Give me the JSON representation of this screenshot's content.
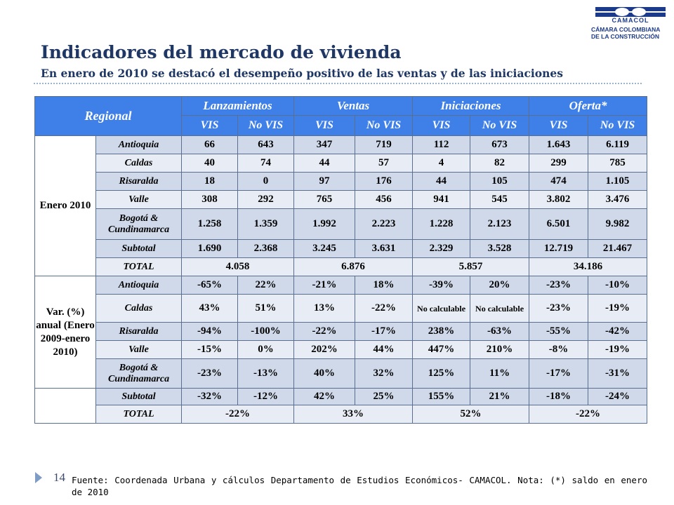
{
  "logo": {
    "word": "CAMACOL",
    "line1": "CÁMARA COLOMBIANA",
    "line2": "DE LA CONSTRUCCIÓN"
  },
  "title": "Indicadores del mercado de vivienda",
  "subtitle": "En enero de 2010 se destacó el desempeño positivo de las ventas y de las iniciaciones",
  "table": {
    "header": {
      "regional": "Regional",
      "groups": [
        "Lanzamientos",
        "Ventas",
        "Iniciaciones",
        "Oferta*"
      ],
      "subcols": [
        "VIS",
        "No VIS",
        "VIS",
        "No VIS",
        "VIS",
        "No VIS",
        "VIS",
        "No VIS"
      ]
    },
    "section1": {
      "label": "Enero 2010",
      "rows": [
        {
          "city": "Antioquia",
          "values": [
            "66",
            "643",
            "347",
            "719",
            "112",
            "673",
            "1.643",
            "6.119"
          ]
        },
        {
          "city": "Caldas",
          "values": [
            "40",
            "74",
            "44",
            "57",
            "4",
            "82",
            "299",
            "785"
          ]
        },
        {
          "city": "Risaralda",
          "values": [
            "18",
            "0",
            "97",
            "176",
            "44",
            "105",
            "474",
            "1.105"
          ]
        },
        {
          "city": "Valle",
          "values": [
            "308",
            "292",
            "765",
            "456",
            "941",
            "545",
            "3.802",
            "3.476"
          ]
        },
        {
          "city": "Bogotá & Cundinamarca",
          "values": [
            "1.258",
            "1.359",
            "1.992",
            "2.223",
            "1.228",
            "2.123",
            "6.501",
            "9.982"
          ]
        }
      ],
      "subtotal": {
        "label": "Subtotal",
        "values": [
          "1.690",
          "2.368",
          "3.245",
          "3.631",
          "2.329",
          "3.528",
          "12.719",
          "21.467"
        ]
      },
      "total": {
        "label": "TOTAL",
        "values": [
          "4.058",
          "6.876",
          "5.857",
          "34.186"
        ]
      }
    },
    "section2": {
      "label": "Var. (%) anual (Enero 2009-enero 2010)",
      "rows": [
        {
          "city": "Antioquia",
          "values": [
            "-65%",
            "22%",
            "-21%",
            "18%",
            "-39%",
            "20%",
            "-23%",
            "-10%"
          ]
        },
        {
          "city": "Caldas",
          "values": [
            "43%",
            "51%",
            "13%",
            "-22%",
            "No calculable",
            "No calculable",
            "-23%",
            "-19%"
          ]
        },
        {
          "city": "Risaralda",
          "values": [
            "-94%",
            "-100%",
            "-22%",
            "-17%",
            "238%",
            "-63%",
            "-55%",
            "-42%"
          ]
        },
        {
          "city": "Valle",
          "values": [
            "-15%",
            "0%",
            "202%",
            "44%",
            "447%",
            "210%",
            "-8%",
            "-19%"
          ]
        },
        {
          "city": "Bogotá & Cundinamarca",
          "values": [
            "-23%",
            "-13%",
            "40%",
            "32%",
            "125%",
            "11%",
            "-17%",
            "-31%"
          ]
        }
      ],
      "subtotal": {
        "label": "Subtotal",
        "values": [
          "-32%",
          "-12%",
          "42%",
          "25%",
          "155%",
          "21%",
          "-18%",
          "-24%"
        ]
      },
      "total": {
        "label": "TOTAL",
        "values": [
          "-22%",
          "33%",
          "52%",
          "-22%"
        ]
      }
    }
  },
  "footer": {
    "page": "14",
    "note": "Fuente: Coordenada Urbana y cálculos Departamento de Estudios Económicos- CAMACOL. Nota: (*) saldo en enero de 2010"
  }
}
